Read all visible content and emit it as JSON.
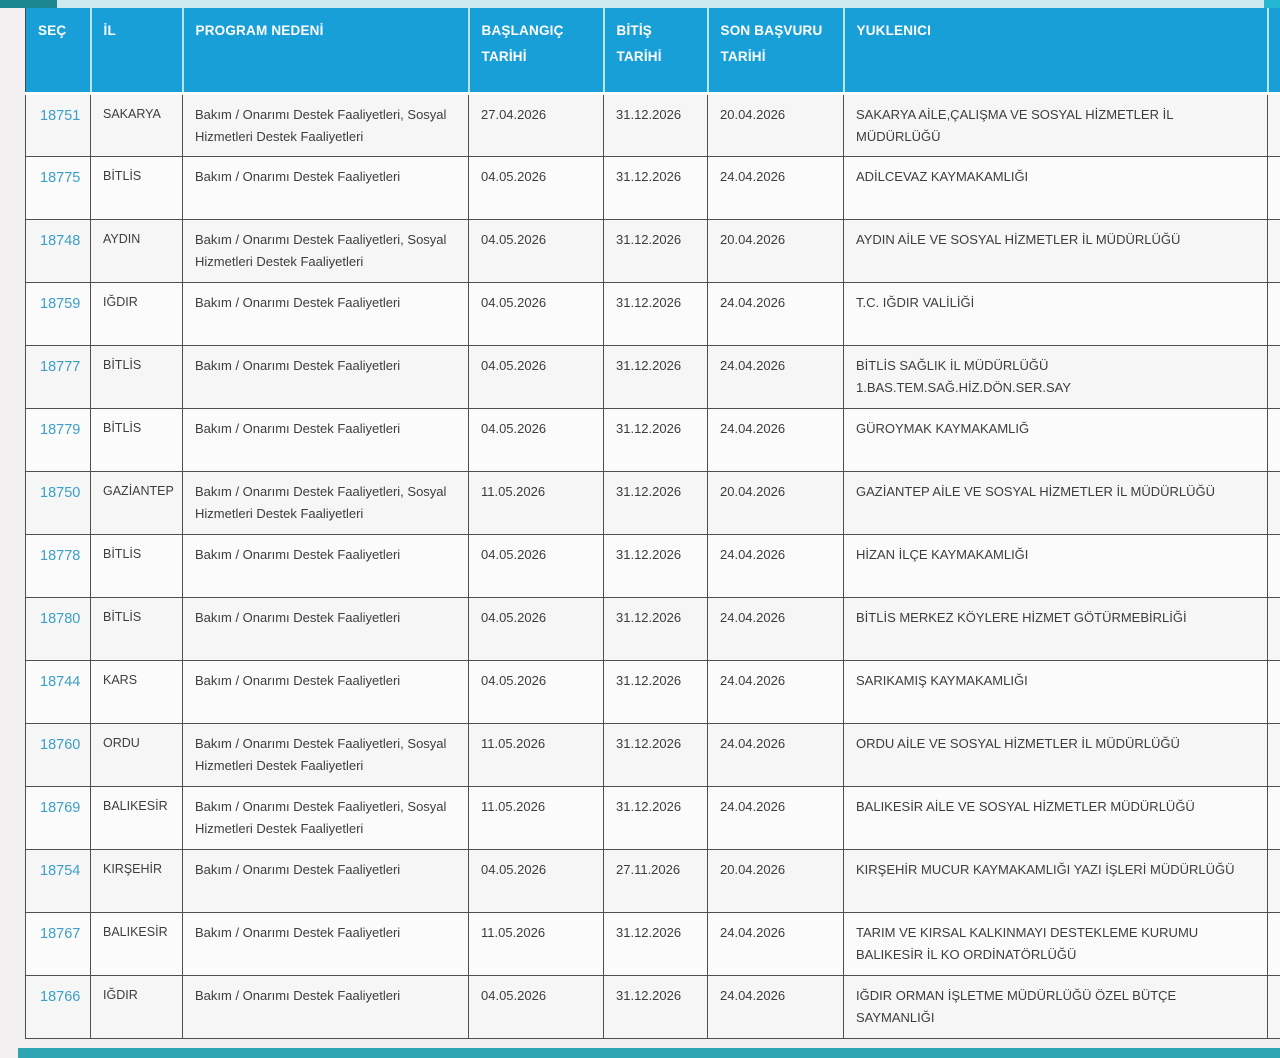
{
  "page": {
    "background_color": "#f1eff0",
    "top_strip_color": "#cdebef",
    "top_strip_left_color": "#1c8691",
    "top_strip_right_color": "#25b6d2",
    "bottom_bar_color": "#2fa5b4"
  },
  "table": {
    "header_bg_color": "#189fd8",
    "header_text_color": "#ffffff",
    "link_color": "#3b9fc7",
    "body_text_color": "#3d3d3d",
    "columns": [
      {
        "label": "SEÇ"
      },
      {
        "label": "İL"
      },
      {
        "label": "PROGRAM NEDENİ"
      },
      {
        "label": "BAŞLANGIÇ TARİHİ"
      },
      {
        "label": "BİTİŞ TARİHİ"
      },
      {
        "label": "SON BAŞVURU TARİHİ"
      },
      {
        "label": "YUKLENICI"
      }
    ],
    "rows": [
      {
        "sec": "18751",
        "il": "SAKARYA",
        "program": "Bakım / Onarımı Destek Faaliyetleri, Sosyal Hizmetleri Destek Faaliyetleri",
        "baslangic": "27.04.2026",
        "bitis": "31.12.2026",
        "son_basvuru": "20.04.2026",
        "yuklenici": "SAKARYA AİLE,ÇALIŞMA VE SOSYAL HİZMETLER İL MÜDÜRLÜĞÜ"
      },
      {
        "sec": "18775",
        "il": "BİTLİS",
        "program": "Bakım / Onarımı Destek Faaliyetleri",
        "baslangic": "04.05.2026",
        "bitis": "31.12.2026",
        "son_basvuru": "24.04.2026",
        "yuklenici": "ADİLCEVAZ KAYMAKAMLIĞI"
      },
      {
        "sec": "18748",
        "il": "AYDIN",
        "program": "Bakım / Onarımı Destek Faaliyetleri, Sosyal Hizmetleri Destek Faaliyetleri",
        "baslangic": "04.05.2026",
        "bitis": "31.12.2026",
        "son_basvuru": "20.04.2026",
        "yuklenici": "AYDIN AİLE VE SOSYAL HİZMETLER İL MÜDÜRLÜĞÜ"
      },
      {
        "sec": "18759",
        "il": "IĞDIR",
        "program": "Bakım / Onarımı Destek Faaliyetleri",
        "baslangic": "04.05.2026",
        "bitis": "31.12.2026",
        "son_basvuru": "24.04.2026",
        "yuklenici": "T.C. IĞDIR VALİLİĞİ"
      },
      {
        "sec": "18777",
        "il": "BİTLİS",
        "program": "Bakım / Onarımı Destek Faaliyetleri",
        "baslangic": "04.05.2026",
        "bitis": "31.12.2026",
        "son_basvuru": "24.04.2026",
        "yuklenici": "BİTLİS SAĞLIK İL MÜDÜRLÜĞÜ 1.BAS.TEM.SAĞ.HİZ.DÖN.SER.SAY"
      },
      {
        "sec": "18779",
        "il": "BİTLİS",
        "program": "Bakım / Onarımı Destek Faaliyetleri",
        "baslangic": "04.05.2026",
        "bitis": "31.12.2026",
        "son_basvuru": "24.04.2026",
        "yuklenici": "GÜROYMAK KAYMAKAMLIĞ"
      },
      {
        "sec": "18750",
        "il": "GAZİANTEP",
        "program": "Bakım / Onarımı Destek Faaliyetleri, Sosyal Hizmetleri Destek Faaliyetleri",
        "baslangic": "11.05.2026",
        "bitis": "31.12.2026",
        "son_basvuru": "20.04.2026",
        "yuklenici": "GAZİANTEP AİLE VE SOSYAL HİZMETLER İL MÜDÜRLÜĞÜ"
      },
      {
        "sec": "18778",
        "il": "BİTLİS",
        "program": "Bakım / Onarımı Destek Faaliyetleri",
        "baslangic": "04.05.2026",
        "bitis": "31.12.2026",
        "son_basvuru": "24.04.2026",
        "yuklenici": "HİZAN İLÇE KAYMAKAMLIĞI"
      },
      {
        "sec": "18780",
        "il": "BİTLİS",
        "program": "Bakım / Onarımı Destek Faaliyetleri",
        "baslangic": "04.05.2026",
        "bitis": "31.12.2026",
        "son_basvuru": "24.04.2026",
        "yuklenici": "BİTLİS MERKEZ KÖYLERE HİZMET GÖTÜRMEBİRLİĞİ"
      },
      {
        "sec": "18744",
        "il": "KARS",
        "program": "Bakım / Onarımı Destek Faaliyetleri",
        "baslangic": "04.05.2026",
        "bitis": "31.12.2026",
        "son_basvuru": "24.04.2026",
        "yuklenici": "SARIKAMIŞ KAYMAKAMLIĞI"
      },
      {
        "sec": "18760",
        "il": "ORDU",
        "program": "Bakım / Onarımı Destek Faaliyetleri, Sosyal Hizmetleri Destek Faaliyetleri",
        "baslangic": "11.05.2026",
        "bitis": "31.12.2026",
        "son_basvuru": "24.04.2026",
        "yuklenici": "ORDU AİLE VE SOSYAL HİZMETLER İL MÜDÜRLÜĞÜ"
      },
      {
        "sec": "18769",
        "il": "BALIKESİR",
        "program": "Bakım / Onarımı Destek Faaliyetleri, Sosyal Hizmetleri Destek Faaliyetleri",
        "baslangic": "11.05.2026",
        "bitis": "31.12.2026",
        "son_basvuru": "24.04.2026",
        "yuklenici": "BALIKESİR AİLE VE SOSYAL HİZMETLER MÜDÜRLÜĞÜ"
      },
      {
        "sec": "18754",
        "il": "KIRŞEHİR",
        "program": "Bakım / Onarımı Destek Faaliyetleri",
        "baslangic": "04.05.2026",
        "bitis": "27.11.2026",
        "son_basvuru": "20.04.2026",
        "yuklenici": "KIRŞEHİR MUCUR KAYMAKAMLIĞI YAZI İŞLERİ MÜDÜRLÜĞÜ"
      },
      {
        "sec": "18767",
        "il": "BALIKESİR",
        "program": "Bakım / Onarımı Destek Faaliyetleri",
        "baslangic": "11.05.2026",
        "bitis": "31.12.2026",
        "son_basvuru": "24.04.2026",
        "yuklenici": "TARIM VE KIRSAL KALKINMAYI DESTEKLEME KURUMU BALIKESİR İL KO ORDİNATÖRLÜĞÜ"
      },
      {
        "sec": "18766",
        "il": "IĞDIR",
        "program": "Bakım / Onarımı Destek Faaliyetleri",
        "baslangic": "04.05.2026",
        "bitis": "31.12.2026",
        "son_basvuru": "24.04.2026",
        "yuklenici": "IĞDIR ORMAN İŞLETME MÜDÜRLÜĞÜ ÖZEL BÜTÇE SAYMANLIĞI"
      }
    ]
  }
}
